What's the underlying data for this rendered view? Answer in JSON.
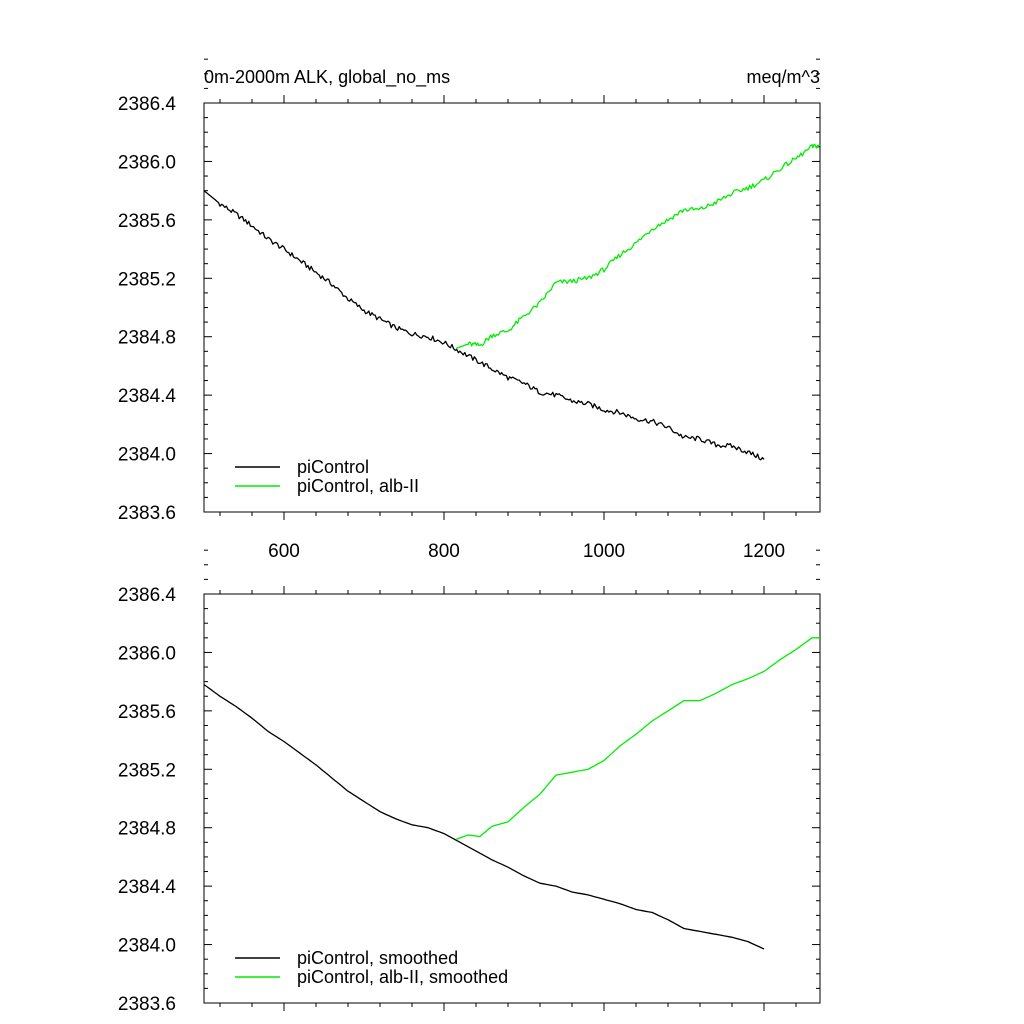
{
  "header": {
    "left_title": "0m-2000m ALK, global_no_ms",
    "right_title": "meq/m^3"
  },
  "colors": {
    "control": "#000000",
    "experiment": "#00ee00"
  },
  "chart_data": [
    {
      "type": "line",
      "title": "0m-2000m ALK, global_no_ms",
      "units": "meq/m^3",
      "xlim": [
        500,
        1270
      ],
      "ylim": [
        2383.6,
        2386.4
      ],
      "xticks": [
        600,
        800,
        1000,
        1200
      ],
      "xtick_labels": [
        "600",
        "800",
        "1000",
        "1200"
      ],
      "yticks": [
        2383.6,
        2384.0,
        2384.4,
        2384.8,
        2385.2,
        2385.6,
        2386.0,
        2386.4
      ],
      "ytick_labels": [
        "2383.6",
        "2384.0",
        "2384.4",
        "2384.8",
        "2385.2",
        "2385.6",
        "2386.0",
        "2386.4"
      ],
      "legend_position": "bottom-left",
      "series": [
        {
          "name": "piControl",
          "color": "#000000",
          "x": [
            500,
            520,
            540,
            560,
            580,
            600,
            620,
            640,
            660,
            680,
            700,
            720,
            740,
            760,
            780,
            800,
            820,
            840,
            860,
            880,
            900,
            920,
            940,
            960,
            980,
            1000,
            1020,
            1040,
            1060,
            1080,
            1100,
            1120,
            1140,
            1160,
            1180,
            1200
          ],
          "y": [
            2385.8,
            2385.71,
            2385.64,
            2385.56,
            2385.47,
            2385.4,
            2385.32,
            2385.24,
            2385.16,
            2385.06,
            2384.98,
            2384.92,
            2384.86,
            2384.82,
            2384.8,
            2384.76,
            2384.7,
            2384.64,
            2384.58,
            2384.52,
            2384.48,
            2384.42,
            2384.4,
            2384.36,
            2384.34,
            2384.3,
            2384.28,
            2384.24,
            2384.22,
            2384.18,
            2384.11,
            2384.1,
            2384.06,
            2384.05,
            2384.01,
            2383.96
          ]
        },
        {
          "name": "piControl, alb-II",
          "color": "#00ee00",
          "x": [
            815,
            830,
            845,
            860,
            880,
            900,
            920,
            940,
            960,
            980,
            1000,
            1020,
            1040,
            1060,
            1080,
            1100,
            1120,
            1140,
            1160,
            1180,
            1200,
            1220,
            1240,
            1260,
            1270
          ],
          "y": [
            2384.72,
            2384.75,
            2384.74,
            2384.81,
            2384.84,
            2384.94,
            2385.03,
            2385.17,
            2385.18,
            2385.2,
            2385.26,
            2385.36,
            2385.44,
            2385.54,
            2385.6,
            2385.67,
            2385.67,
            2385.72,
            2385.78,
            2385.82,
            2385.87,
            2385.95,
            2386.02,
            2386.1,
            2386.11
          ]
        }
      ]
    },
    {
      "type": "line",
      "xlim": [
        500,
        1270
      ],
      "ylim": [
        2383.6,
        2386.4
      ],
      "xticks": [
        600,
        800,
        1000,
        1200
      ],
      "yticks": [
        2383.6,
        2384.0,
        2384.4,
        2384.8,
        2385.2,
        2385.6,
        2386.0,
        2386.4
      ],
      "ytick_labels": [
        "2383.6",
        "2384.0",
        "2384.4",
        "2384.8",
        "2385.2",
        "2385.6",
        "2386.0",
        "2386.4"
      ],
      "legend_position": "bottom-left",
      "series": [
        {
          "name": "piControl, smoothed",
          "color": "#000000",
          "x": [
            500,
            520,
            540,
            560,
            580,
            600,
            620,
            640,
            660,
            680,
            700,
            720,
            740,
            760,
            780,
            800,
            820,
            840,
            860,
            880,
            900,
            920,
            940,
            960,
            980,
            1000,
            1020,
            1040,
            1060,
            1080,
            1100,
            1120,
            1140,
            1160,
            1180,
            1200
          ],
          "y": [
            2385.78,
            2385.7,
            2385.63,
            2385.55,
            2385.46,
            2385.39,
            2385.31,
            2385.23,
            2385.14,
            2385.05,
            2384.98,
            2384.91,
            2384.86,
            2384.82,
            2384.8,
            2384.76,
            2384.7,
            2384.64,
            2384.58,
            2384.53,
            2384.47,
            2384.42,
            2384.4,
            2384.36,
            2384.34,
            2384.31,
            2384.28,
            2384.24,
            2384.22,
            2384.17,
            2384.11,
            2384.09,
            2384.07,
            2384.05,
            2384.02,
            2383.97
          ]
        },
        {
          "name": "piControl, alb-II, smoothed",
          "color": "#00ee00",
          "x": [
            815,
            830,
            845,
            860,
            880,
            900,
            920,
            940,
            960,
            980,
            1000,
            1020,
            1040,
            1060,
            1080,
            1100,
            1120,
            1140,
            1160,
            1180,
            1200,
            1220,
            1240,
            1260,
            1270
          ],
          "y": [
            2384.72,
            2384.75,
            2384.74,
            2384.81,
            2384.84,
            2384.94,
            2385.03,
            2385.16,
            2385.18,
            2385.2,
            2385.26,
            2385.36,
            2385.44,
            2385.53,
            2385.6,
            2385.67,
            2385.67,
            2385.72,
            2385.78,
            2385.82,
            2385.87,
            2385.95,
            2386.02,
            2386.1,
            2386.1
          ]
        }
      ]
    }
  ]
}
